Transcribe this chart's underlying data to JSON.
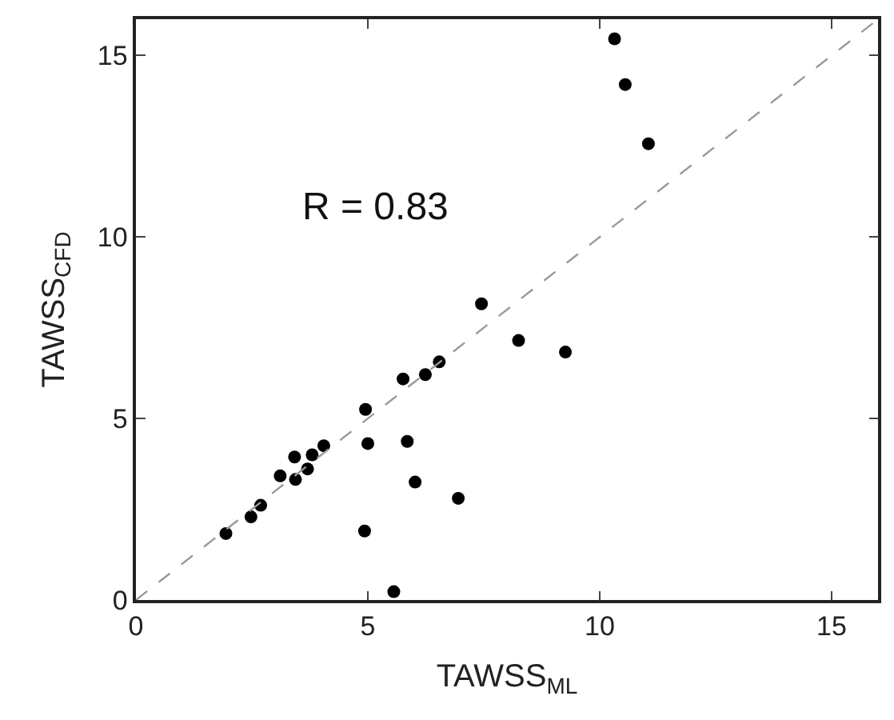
{
  "chart_data": {
    "type": "scatter",
    "xlabel": "TAWSS$_{ML}$",
    "ylabel": "TAWSS$_{CFD}$",
    "xlim": [
      0,
      16
    ],
    "ylim": [
      0,
      16
    ],
    "xticks": [
      0,
      5,
      10,
      15
    ],
    "yticks": [
      0,
      5,
      10,
      15
    ],
    "legend": false,
    "marker": "circle",
    "annotations": [
      "R = 0.83"
    ],
    "series": [
      {
        "color": "#000000",
        "x": [
          1.94,
          2.48,
          2.69,
          3.11,
          3.42,
          3.44,
          3.7,
          3.8,
          4.05,
          4.95,
          5.0,
          4.93,
          5.56,
          5.76,
          5.85,
          6.02,
          6.24,
          6.54,
          6.95,
          7.45,
          8.25,
          9.26,
          10.32,
          10.55,
          11.05
        ],
        "values": [
          1.83,
          2.29,
          2.61,
          3.42,
          3.94,
          3.32,
          3.61,
          4.0,
          4.25,
          5.25,
          4.31,
          1.9,
          0.23,
          6.09,
          4.37,
          3.25,
          6.21,
          6.56,
          2.8,
          8.16,
          7.15,
          6.83,
          15.46,
          14.2,
          12.57
        ]
      },
      {
        "type": "line",
        "color": "#999999",
        "line_style": "dashed",
        "marker": "none",
        "x": [
          0,
          16
        ],
        "values": [
          0,
          16
        ]
      }
    ]
  }
}
